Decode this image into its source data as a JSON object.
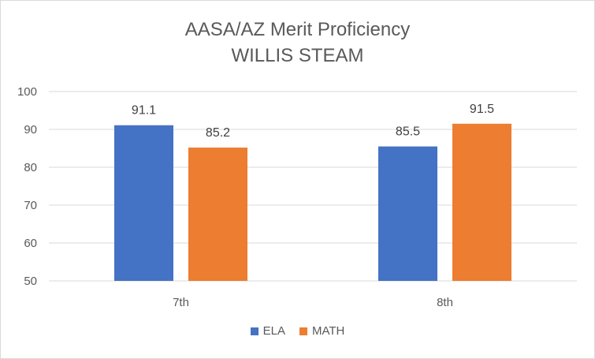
{
  "chart_data": {
    "type": "bar",
    "title": "AASA/AZ Merit Proficiency",
    "subtitle": "WILLIS STEAM",
    "categories": [
      "7th",
      "8th"
    ],
    "series": [
      {
        "name": "ELA",
        "values": [
          91.1,
          85.5
        ],
        "color": "#4472c4"
      },
      {
        "name": "MATH",
        "values": [
          85.2,
          91.5
        ],
        "color": "#ed7d31"
      }
    ],
    "ylim": [
      50,
      100
    ],
    "yticks": [
      50,
      60,
      70,
      80,
      90,
      100
    ],
    "grid": true,
    "legend_position": "bottom"
  }
}
